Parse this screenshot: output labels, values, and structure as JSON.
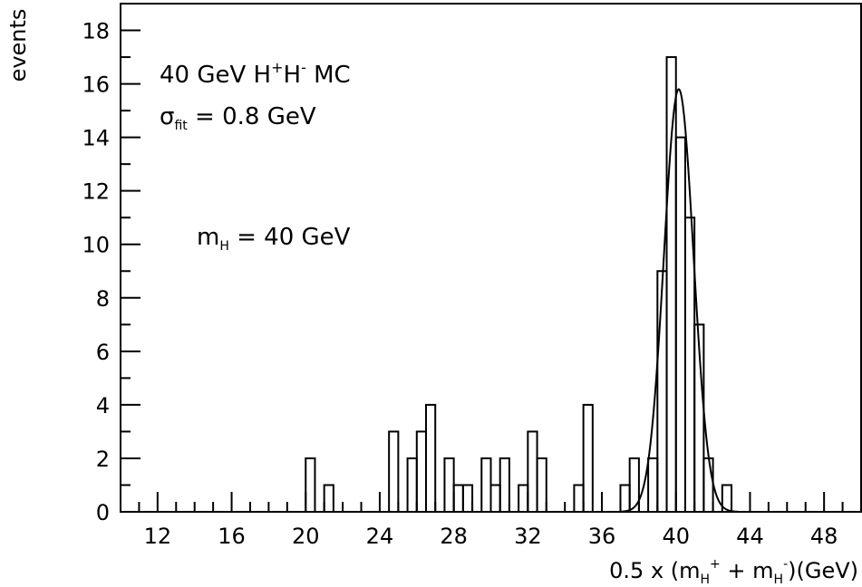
{
  "chart_data": {
    "type": "histogram",
    "ylabel": "events",
    "xlabel": "0.5 x (m_H^+ + m_H^-)(GeV)",
    "xlabel_parts": {
      "prefix": "0.5 x (m",
      "sub1": "H",
      "sup1": "+",
      "mid": " + m",
      "sub2": "H",
      "sup2": "-",
      "suffix": ")(GeV)"
    },
    "xlim": [
      10,
      50
    ],
    "ylim": [
      0,
      19
    ],
    "xticks": [
      12,
      16,
      20,
      24,
      28,
      32,
      36,
      40,
      44,
      48
    ],
    "yticks": [
      0,
      2,
      4,
      6,
      8,
      10,
      12,
      14,
      16,
      18
    ],
    "bin_width": 0.5,
    "bins": [
      {
        "x": 20.0,
        "y": 2
      },
      {
        "x": 20.5,
        "y": 0
      },
      {
        "x": 21.0,
        "y": 1
      },
      {
        "x": 21.5,
        "y": 0
      },
      {
        "x": 22.0,
        "y": 0
      },
      {
        "x": 22.5,
        "y": 0
      },
      {
        "x": 23.0,
        "y": 0
      },
      {
        "x": 23.5,
        "y": 0
      },
      {
        "x": 24.0,
        "y": 0
      },
      {
        "x": 24.5,
        "y": 3
      },
      {
        "x": 25.0,
        "y": 0
      },
      {
        "x": 25.5,
        "y": 2
      },
      {
        "x": 26.0,
        "y": 3
      },
      {
        "x": 26.5,
        "y": 4
      },
      {
        "x": 27.0,
        "y": 0
      },
      {
        "x": 27.5,
        "y": 2
      },
      {
        "x": 28.0,
        "y": 1
      },
      {
        "x": 28.5,
        "y": 1
      },
      {
        "x": 29.0,
        "y": 0
      },
      {
        "x": 29.5,
        "y": 2
      },
      {
        "x": 30.0,
        "y": 1
      },
      {
        "x": 30.5,
        "y": 2
      },
      {
        "x": 31.0,
        "y": 0
      },
      {
        "x": 31.5,
        "y": 1
      },
      {
        "x": 32.0,
        "y": 3
      },
      {
        "x": 32.5,
        "y": 2
      },
      {
        "x": 33.0,
        "y": 0
      },
      {
        "x": 33.5,
        "y": 0
      },
      {
        "x": 34.0,
        "y": 0
      },
      {
        "x": 34.5,
        "y": 1
      },
      {
        "x": 35.0,
        "y": 4
      },
      {
        "x": 35.5,
        "y": 0
      },
      {
        "x": 36.0,
        "y": 0
      },
      {
        "x": 36.5,
        "y": 0
      },
      {
        "x": 37.0,
        "y": 1
      },
      {
        "x": 37.5,
        "y": 2
      },
      {
        "x": 38.0,
        "y": 0
      },
      {
        "x": 38.5,
        "y": 2
      },
      {
        "x": 39.0,
        "y": 9
      },
      {
        "x": 39.5,
        "y": 17
      },
      {
        "x": 40.0,
        "y": 14
      },
      {
        "x": 40.5,
        "y": 11
      },
      {
        "x": 41.0,
        "y": 7
      },
      {
        "x": 41.5,
        "y": 2
      },
      {
        "x": 42.0,
        "y": 0
      },
      {
        "x": 42.5,
        "y": 1
      }
    ],
    "fit": {
      "type": "gaussian",
      "mean": 40.15,
      "sigma": 0.8,
      "amplitude": 15.8
    },
    "annotations": {
      "line1": {
        "text": "40 GeV H",
        "sup1": "+",
        "mid": "H",
        "sup2": "-",
        "end": " MC"
      },
      "line2": {
        "symbol": "σ",
        "sub": "fit",
        "rest": " = 0.8 GeV"
      },
      "line3": {
        "text": "m",
        "sub": "H",
        "rest": " = 40 GeV"
      }
    }
  }
}
